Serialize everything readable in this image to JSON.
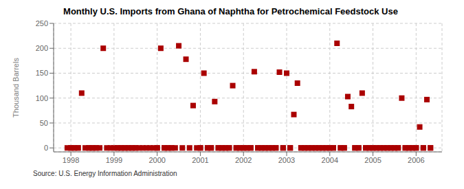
{
  "chart_data": {
    "type": "scatter",
    "title": "Monthly U.S. Imports from Ghana of Naphtha for Petrochemical Feedstock Use",
    "ylabel": "Thousand Barrels",
    "annotations": [
      "Source: U.S. Energy Information Administration"
    ],
    "color": "#aa0000",
    "marker": "square",
    "grid": true,
    "xlim": [
      1997.6,
      2006.6
    ],
    "ylim": [
      -8,
      250
    ],
    "xticks": [
      1998,
      1999,
      2000,
      2001,
      2002,
      2003,
      2004,
      2005,
      2006
    ],
    "yticks": [
      0,
      50,
      100,
      150,
      200,
      250
    ],
    "x": [
      1997.917,
      1998.0,
      1998.083,
      1998.167,
      1998.25,
      1998.333,
      1998.417,
      1998.5,
      1998.583,
      1998.667,
      1998.75,
      1998.833,
      1998.917,
      1999.0,
      1999.083,
      1999.167,
      1999.25,
      1999.333,
      1999.417,
      1999.5,
      1999.583,
      1999.667,
      1999.75,
      1999.833,
      1999.917,
      2000.0,
      2000.083,
      2000.167,
      2000.25,
      2000.333,
      2000.417,
      2000.5,
      2000.583,
      2000.667,
      2000.75,
      2000.833,
      2000.917,
      2001.0,
      2001.083,
      2001.167,
      2001.25,
      2001.333,
      2001.417,
      2001.5,
      2001.583,
      2001.667,
      2001.75,
      2001.833,
      2001.917,
      2002.0,
      2002.083,
      2002.167,
      2002.25,
      2002.333,
      2002.417,
      2002.5,
      2002.583,
      2002.667,
      2002.75,
      2002.833,
      2002.917,
      2003.0,
      2003.083,
      2003.167,
      2003.25,
      2003.333,
      2003.417,
      2003.5,
      2003.583,
      2003.667,
      2003.75,
      2003.833,
      2003.917,
      2004.0,
      2004.083,
      2004.167,
      2004.25,
      2004.333,
      2004.417,
      2004.5,
      2004.583,
      2004.667,
      2004.75,
      2004.833,
      2004.917,
      2005.0,
      2005.083,
      2005.167,
      2005.25,
      2005.333,
      2005.417,
      2005.5,
      2005.583,
      2005.667,
      2005.75,
      2005.833,
      2005.917,
      2006.0,
      2006.083,
      2006.167,
      2006.25,
      2006.333,
      1998.0,
      1998.083,
      1998.167,
      1998.417,
      1998.5,
      1998.583,
      1999.083,
      1999.167,
      1999.25,
      1999.333,
      1999.417,
      1999.5,
      2000.0,
      2000.167,
      2000.25,
      2000.333,
      2001.0,
      2001.167,
      2001.25,
      2001.417,
      2001.5,
      2001.583,
      2001.667,
      2001.833,
      2001.917,
      2002.0,
      2002.083,
      2002.167,
      2002.333,
      2002.417,
      2002.5,
      2002.583,
      2002.667,
      2002.75,
      2002.917,
      2003.083,
      2003.333,
      2003.417,
      2003.5,
      2003.583,
      2003.667,
      2003.75,
      2003.833,
      2003.917,
      2004.0,
      2004.083,
      2004.25,
      2004.333,
      2004.583,
      2004.667,
      2004.833,
      2004.917,
      2005.0,
      2005.083,
      2005.167,
      2005.25,
      2005.333,
      2005.417,
      2005.5,
      2005.583,
      2005.75,
      2005.833,
      2005.917,
      2006.0,
      2006.167,
      2006.333
    ],
    "values": [
      0,
      0,
      0,
      0,
      110,
      0,
      0,
      0,
      0,
      0,
      200,
      0,
      0,
      0,
      0,
      0,
      0,
      0,
      0,
      0,
      0,
      0,
      0,
      0,
      0,
      0,
      200,
      0,
      0,
      0,
      0,
      205,
      0,
      178,
      0,
      85,
      0,
      0,
      150,
      0,
      0,
      93,
      0,
      0,
      0,
      0,
      125,
      0,
      0,
      0,
      0,
      0,
      153,
      0,
      0,
      0,
      0,
      0,
      0,
      152,
      0,
      150,
      0,
      67,
      130,
      0,
      0,
      0,
      0,
      0,
      0,
      0,
      0,
      0,
      0,
      210,
      0,
      0,
      103,
      83,
      0,
      0,
      110,
      0,
      0,
      0,
      0,
      0,
      0,
      0,
      0,
      0,
      0,
      100,
      0,
      0,
      0,
      0,
      42,
      0,
      97,
      0,
      0,
      0,
      0,
      0,
      0,
      0,
      0,
      0,
      0,
      0,
      0,
      0,
      0,
      0,
      0,
      0,
      0,
      0,
      0,
      0,
      0,
      0,
      0,
      0,
      0,
      0,
      0,
      0,
      0,
      0,
      0,
      0,
      0,
      0,
      0,
      0,
      0,
      0,
      0,
      0,
      0,
      0,
      0,
      0,
      0,
      0,
      0,
      0,
      0,
      0,
      0,
      0,
      0,
      0,
      0,
      0,
      0,
      0,
      0,
      0,
      0,
      0,
      0,
      0,
      0,
      0
    ]
  }
}
